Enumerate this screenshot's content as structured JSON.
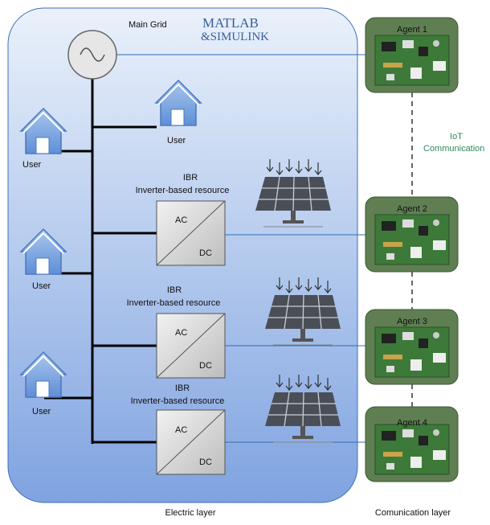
{
  "electric_layer": {
    "label": "Electric layer",
    "main_grid": "Main Grid",
    "logo": [
      "MATLAB",
      "&SIMULINK"
    ],
    "users": [
      "User",
      "User",
      "User",
      "User"
    ],
    "ibrs": [
      {
        "title": "IBR",
        "subtitle": "Inverter-based resource",
        "ac": "AC",
        "dc": "DC"
      },
      {
        "title": "IBR",
        "subtitle": "Inverter-based resource",
        "ac": "AC",
        "dc": "DC"
      },
      {
        "title": "IBR",
        "subtitle": "Inverter-based resource",
        "ac": "AC",
        "dc": "DC"
      }
    ]
  },
  "communication_layer": {
    "label": "Comunication layer",
    "agents": [
      "Agent 1",
      "Agent 2",
      "Agent 3",
      "Agent 4"
    ],
    "link_label": [
      "IoT",
      "Communication"
    ]
  }
}
